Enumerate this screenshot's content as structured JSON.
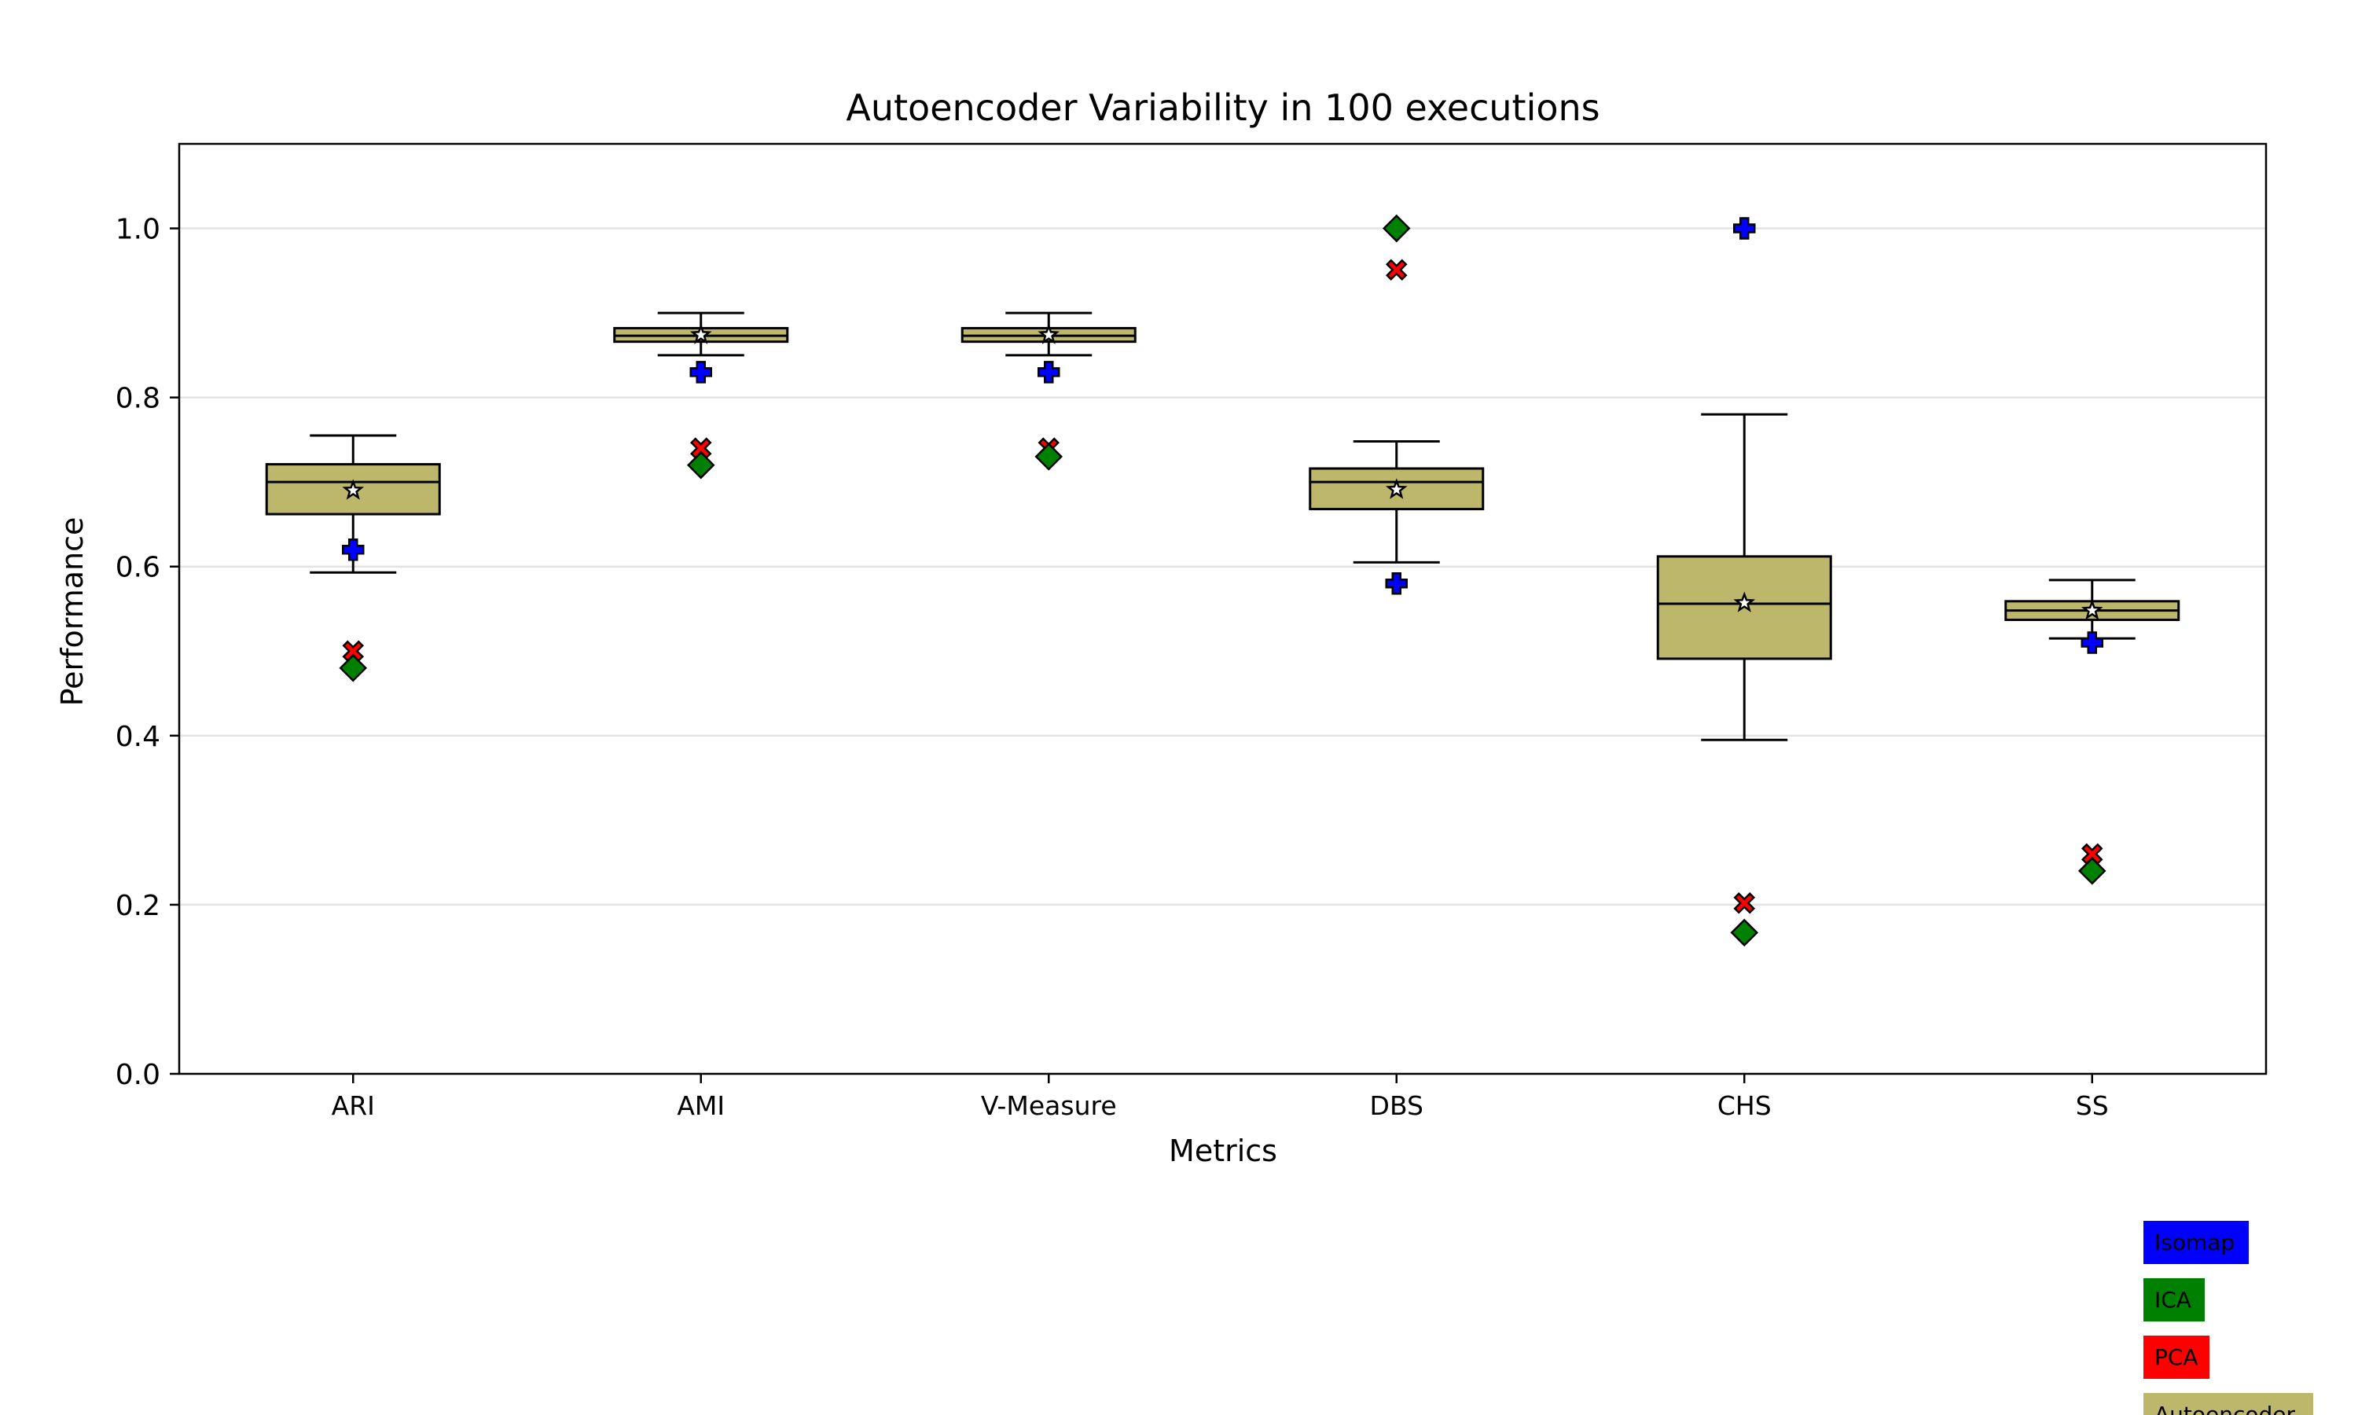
{
  "chart_data": {
    "type": "box",
    "title": "Autoencoder Variability in 100 executions",
    "xlabel": "Metrics",
    "ylabel": "Performance",
    "ylim": [
      0.0,
      1.1
    ],
    "yticks": [
      "0.0",
      "0.2",
      "0.4",
      "0.6",
      "0.8",
      "1.0"
    ],
    "grid": "horizontal",
    "categories": [
      "ARI",
      "AMI",
      "V-Measure",
      "DBS",
      "CHS",
      "SS"
    ],
    "box_series": {
      "name": "Autoencoder",
      "color": "#bdb76b",
      "boxes": [
        {
          "whislo": 0.593,
          "q1": 0.662,
          "med": 0.7,
          "q3": 0.721,
          "whishi": 0.755,
          "mean": 0.69
        },
        {
          "whislo": 0.85,
          "q1": 0.866,
          "med": 0.873,
          "q3": 0.882,
          "whishi": 0.9,
          "mean": 0.874
        },
        {
          "whislo": 0.85,
          "q1": 0.866,
          "med": 0.873,
          "q3": 0.882,
          "whishi": 0.9,
          "mean": 0.874
        },
        {
          "whislo": 0.605,
          "q1": 0.668,
          "med": 0.7,
          "q3": 0.716,
          "whishi": 0.748,
          "mean": 0.691
        },
        {
          "whislo": 0.395,
          "q1": 0.491,
          "med": 0.556,
          "q3": 0.612,
          "whishi": 0.78,
          "mean": 0.557
        },
        {
          "whislo": 0.515,
          "q1": 0.537,
          "med": 0.548,
          "q3": 0.559,
          "whishi": 0.584,
          "mean": 0.548
        }
      ]
    },
    "series": [
      {
        "name": "Isomap",
        "color": "#0000ff",
        "marker": "plus",
        "values": [
          0.62,
          0.83,
          0.83,
          0.58,
          1.0,
          0.51
        ]
      },
      {
        "name": "ICA",
        "color": "#008000",
        "marker": "diamond",
        "values": [
          0.48,
          0.72,
          0.73,
          1.0,
          0.167,
          0.24
        ]
      },
      {
        "name": "PCA",
        "color": "#ff0000",
        "marker": "x",
        "values": [
          0.5,
          0.74,
          0.74,
          0.951,
          0.202,
          0.26
        ]
      }
    ],
    "legend": {
      "placement": "bottom-right, below plot",
      "entries": [
        {
          "label": "Isomap",
          "color": "#0000ff"
        },
        {
          "label": "ICA",
          "color": "#008000"
        },
        {
          "label": "PCA",
          "color": "#ff0000"
        },
        {
          "label": "Autoencoder",
          "color": "#bdb76b"
        }
      ]
    }
  }
}
